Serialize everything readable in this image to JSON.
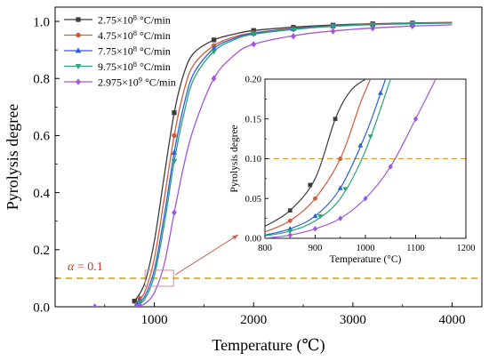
{
  "chart_data": [
    {
      "type": "line",
      "title": "",
      "xlabel": "Temperature (℃)",
      "ylabel": "Pyrolysis degree",
      "xlim": [
        0,
        4300
      ],
      "ylim": [
        0,
        1.05
      ],
      "xticks": [
        "1000",
        "2000",
        "3000",
        "4000"
      ],
      "yticks": [
        "0.0",
        "0.2",
        "0.4",
        "0.6",
        "0.8",
        "1.0"
      ],
      "xtick_values": [
        1000,
        2000,
        3000,
        4000
      ],
      "ytick_values": [
        0.0,
        0.2,
        0.4,
        0.6,
        0.8,
        1.0
      ],
      "grid": false,
      "legend_position": "top-left",
      "reference_line": {
        "y": 0.1,
        "style": "dashed",
        "color": "#d4a22a"
      },
      "annotation": {
        "label_prefix": "α",
        "label_value": "= 0.1",
        "color": "#c0392b",
        "x": 1050,
        "y": 0.1
      },
      "series": [
        {
          "name": "2.75×10⁸ °C/min",
          "color": "#3b3b3b",
          "marker": "square",
          "x": [
            800,
            900,
            1000,
            1100,
            1200,
            1300,
            1400,
            1600,
            1800,
            2000,
            2500,
            3000,
            3500,
            4000
          ],
          "y": [
            0.02,
            0.08,
            0.23,
            0.46,
            0.68,
            0.82,
            0.89,
            0.935,
            0.955,
            0.968,
            0.982,
            0.99,
            0.994,
            0.996
          ],
          "marker_x": [
            800,
            1200,
            1600,
            2000,
            2400,
            2800,
            3200,
            3600
          ]
        },
        {
          "name": "4.75×10⁸ °C/min",
          "color": "#d35a3a",
          "marker": "circle",
          "x": [
            800,
            900,
            1000,
            1100,
            1200,
            1300,
            1400,
            1600,
            1800,
            2000,
            2500,
            3000,
            3500,
            4000
          ],
          "y": [
            0.01,
            0.05,
            0.17,
            0.38,
            0.6,
            0.76,
            0.85,
            0.915,
            0.945,
            0.96,
            0.978,
            0.988,
            0.993,
            0.996
          ],
          "marker_x": [
            850,
            1200,
            1600,
            2000,
            2400,
            2800,
            3200,
            3600
          ]
        },
        {
          "name": "7.75×10⁸ °C/min",
          "color": "#2a5fd6",
          "marker": "triangle-up",
          "x": [
            800,
            900,
            1000,
            1100,
            1200,
            1300,
            1400,
            1600,
            1800,
            2000,
            2500,
            3000,
            3500,
            4000
          ],
          "y": [
            0.005,
            0.035,
            0.13,
            0.32,
            0.54,
            0.71,
            0.82,
            0.905,
            0.94,
            0.958,
            0.977,
            0.987,
            0.992,
            0.995
          ],
          "marker_x": [
            850,
            1200,
            1600,
            2000,
            2400,
            2800,
            3200,
            3600
          ]
        },
        {
          "name": "9.75×10⁸ °C/min",
          "color": "#27a37b",
          "marker": "triangle-down",
          "x": [
            800,
            900,
            1000,
            1100,
            1200,
            1300,
            1400,
            1600,
            1800,
            2000,
            2500,
            3000,
            3500,
            4000
          ],
          "y": [
            0.003,
            0.025,
            0.11,
            0.29,
            0.51,
            0.68,
            0.8,
            0.895,
            0.935,
            0.955,
            0.975,
            0.986,
            0.991,
            0.994
          ],
          "marker_x": [
            850,
            1200,
            1600,
            2000,
            2400,
            2800,
            3200,
            3600
          ]
        },
        {
          "name": "2.975×10⁹ °C/min",
          "color": "#a155dd",
          "marker": "diamond",
          "x": [
            800,
            900,
            1000,
            1100,
            1200,
            1300,
            1400,
            1600,
            1800,
            2000,
            2500,
            3000,
            3500,
            4000
          ],
          "y": [
            0.0,
            0.01,
            0.05,
            0.15,
            0.33,
            0.5,
            0.63,
            0.8,
            0.88,
            0.92,
            0.955,
            0.972,
            0.982,
            0.988
          ],
          "marker_x": [
            400,
            850,
            1200,
            1600,
            2000,
            2400,
            2800,
            3200,
            3600
          ]
        }
      ]
    },
    {
      "type": "line",
      "title": "",
      "xlabel": "Temperature (°C)",
      "ylabel": "Pyrolysis degree",
      "xlim": [
        800,
        1200
      ],
      "ylim": [
        0,
        0.2
      ],
      "xticks": [
        "800",
        "900",
        "1000",
        "1100",
        "1200"
      ],
      "yticks": [
        "0.00",
        "0.05",
        "0.10",
        "0.15",
        "0.20"
      ],
      "xtick_values": [
        800,
        900,
        1000,
        1100,
        1200
      ],
      "ytick_values": [
        0.0,
        0.05,
        0.1,
        0.15,
        0.2
      ],
      "grid": false,
      "reference_line": {
        "y": 0.1,
        "style": "dashed",
        "color": "#d4a22a"
      },
      "series": [
        {
          "name": "2.75×10⁸ °C/min",
          "color": "#3b3b3b",
          "marker": "square",
          "x": [
            800,
            850,
            900,
            940,
            970,
            1000
          ],
          "y": [
            0.015,
            0.035,
            0.075,
            0.15,
            0.185,
            0.2
          ],
          "marker_x": [
            850,
            890,
            940
          ]
        },
        {
          "name": "4.75×10⁸ °C/min",
          "color": "#d35a3a",
          "marker": "circle",
          "x": [
            800,
            850,
            900,
            950,
            990,
            1010
          ],
          "y": [
            0.008,
            0.022,
            0.05,
            0.1,
            0.17,
            0.2
          ],
          "marker_x": [
            850,
            900,
            950
          ]
        },
        {
          "name": "7.75×10⁸ °C/min",
          "color": "#2a5fd6",
          "marker": "triangle-up",
          "x": [
            800,
            850,
            900,
            950,
            1000,
            1040
          ],
          "y": [
            0.004,
            0.012,
            0.028,
            0.063,
            0.13,
            0.2
          ],
          "marker_x": [
            850,
            900,
            950,
            990,
            1030
          ]
        },
        {
          "name": "9.75×10⁸ °C/min",
          "color": "#27a37b",
          "marker": "triangle-down",
          "x": [
            800,
            850,
            900,
            950,
            1000,
            1050
          ],
          "y": [
            0.003,
            0.009,
            0.022,
            0.05,
            0.11,
            0.2
          ],
          "marker_x": [
            850,
            910,
            960,
            1010
          ]
        },
        {
          "name": "2.975×10⁹ °C/min",
          "color": "#a155dd",
          "marker": "diamond",
          "x": [
            800,
            850,
            900,
            950,
            1000,
            1050,
            1100,
            1140
          ],
          "y": [
            0.0,
            0.004,
            0.012,
            0.025,
            0.05,
            0.09,
            0.15,
            0.2
          ],
          "marker_x": [
            850,
            900,
            950,
            1000,
            1050,
            1100
          ]
        }
      ]
    }
  ]
}
